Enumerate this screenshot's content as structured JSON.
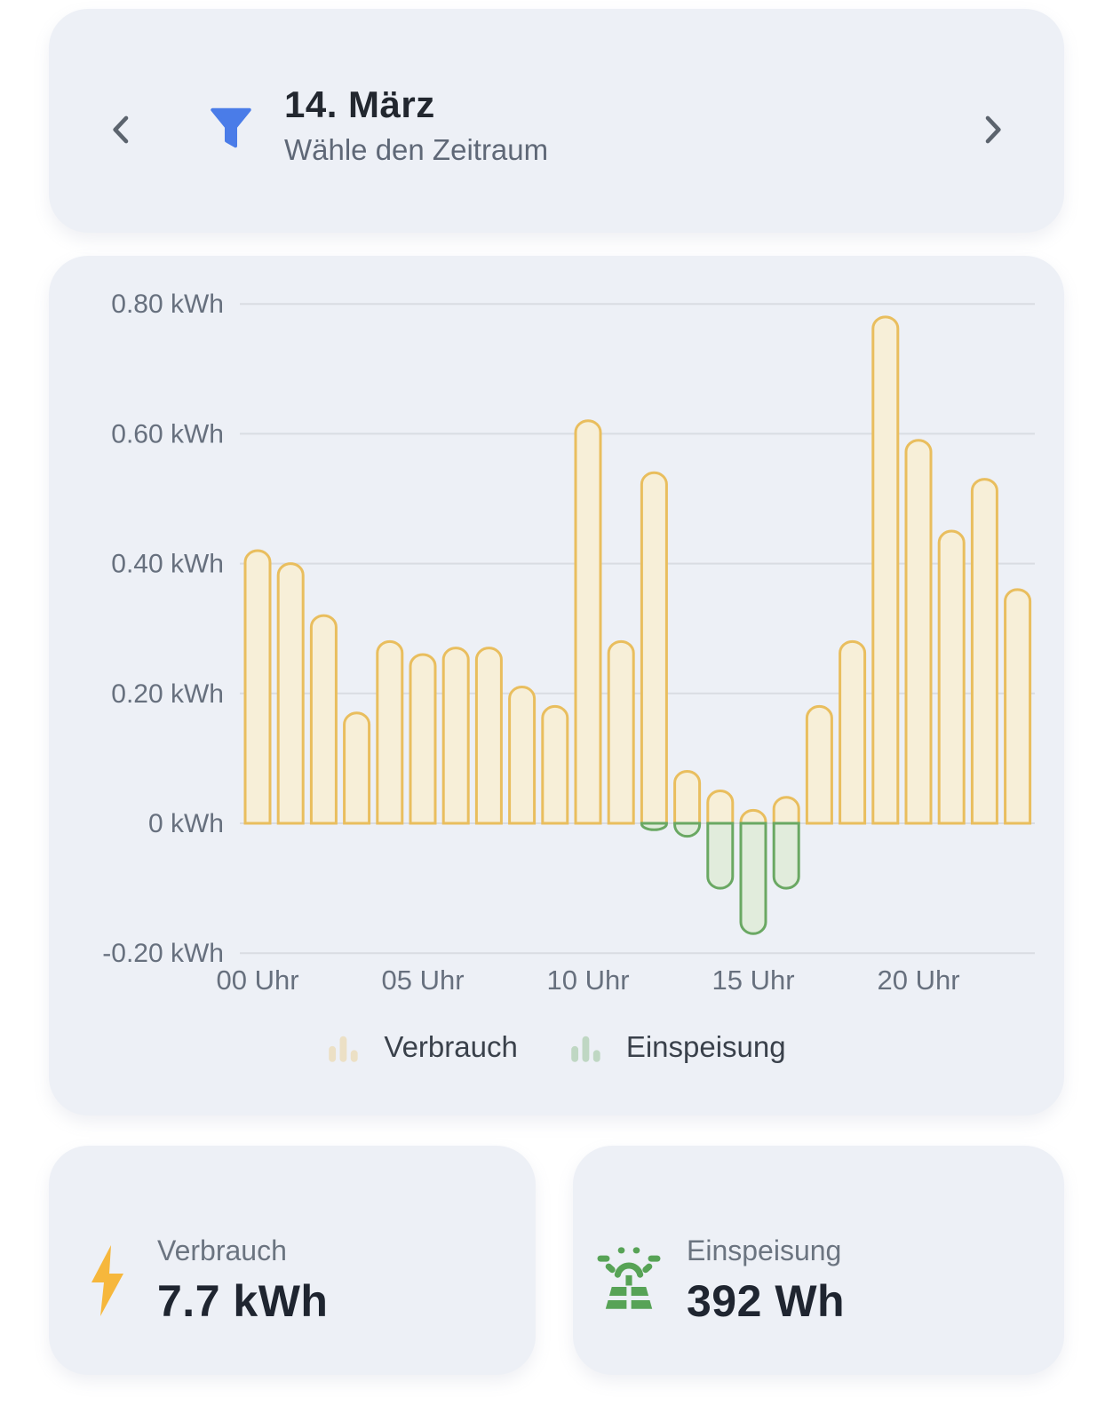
{
  "colors": {
    "page_bg": "#ffffff",
    "card_bg": "#edf0f6",
    "grid": "#d9dce2",
    "axis_text": "#67707e",
    "filter_blue": "#4a7ce8",
    "chevron_gray": "#5c646e",
    "bolt_yellow": "#f6b73c",
    "solar_green": "#57a356",
    "verbrauch_border": "#e9be5e",
    "verbrauch_fill": "#f7efd8",
    "einspeisung_border": "#6aa863",
    "einspeisung_fill": "#e1ecdc"
  },
  "header": {
    "title": "14. März",
    "subtitle": "Wähle den Zeitraum"
  },
  "chart_data": {
    "type": "bar",
    "unit": "kWh",
    "x": [
      0,
      1,
      2,
      3,
      4,
      5,
      6,
      7,
      8,
      9,
      10,
      11,
      12,
      13,
      14,
      15,
      16,
      17,
      18,
      19,
      20,
      21,
      22,
      23
    ],
    "series": [
      {
        "name": "Verbrauch",
        "color": "#e9be5e",
        "fill": "#f7efd8",
        "values": [
          0.42,
          0.4,
          0.32,
          0.17,
          0.28,
          0.26,
          0.27,
          0.27,
          0.21,
          0.18,
          0.62,
          0.28,
          0.54,
          0.08,
          0.05,
          0.02,
          0.04,
          0.18,
          0.28,
          0.78,
          0.59,
          0.45,
          0.53,
          0.36
        ]
      },
      {
        "name": "Einspeisung",
        "color": "#6aa863",
        "fill": "#e1ecdc",
        "values": [
          0,
          0,
          0,
          0,
          0,
          0,
          0,
          0,
          0,
          0,
          0,
          0,
          -0.01,
          -0.02,
          -0.1,
          -0.17,
          -0.1,
          0,
          0,
          0,
          0,
          0,
          0,
          0
        ]
      }
    ],
    "y_ticks": [
      {
        "value": 0.8,
        "label": "0.80 kWh"
      },
      {
        "value": 0.6,
        "label": "0.60 kWh"
      },
      {
        "value": 0.4,
        "label": "0.40 kWh"
      },
      {
        "value": 0.2,
        "label": "0.20 kWh"
      },
      {
        "value": 0,
        "label": "0 kWh"
      },
      {
        "value": -0.2,
        "label": "-0.20 kWh"
      }
    ],
    "x_ticks": [
      {
        "hour": 0,
        "label": "00 Uhr"
      },
      {
        "hour": 5,
        "label": "05 Uhr"
      },
      {
        "hour": 10,
        "label": "10 Uhr"
      },
      {
        "hour": 15,
        "label": "15 Uhr"
      },
      {
        "hour": 20,
        "label": "20 Uhr"
      }
    ],
    "ylim": [
      -0.25,
      0.85
    ],
    "grid": true,
    "legend_position": "bottom"
  },
  "summary": {
    "cards": [
      {
        "id": "verbrauch",
        "label": "Verbrauch",
        "value": "7.7 kWh",
        "icon": "lightning-icon"
      },
      {
        "id": "einspeisung",
        "label": "Einspeisung",
        "value": "392 Wh",
        "icon": "solar-panel-icon"
      }
    ]
  }
}
